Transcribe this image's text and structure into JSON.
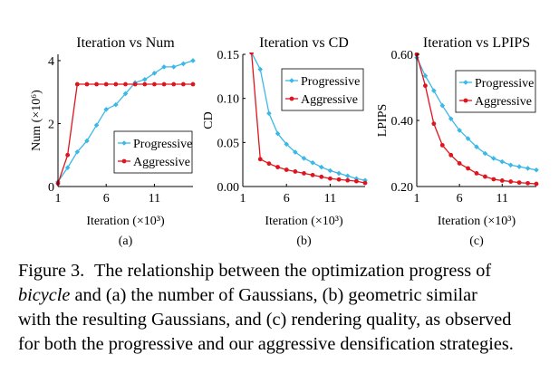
{
  "colors": {
    "progressive": "#3ab8e8",
    "aggressive": "#e0141c",
    "axis": "#000000",
    "legend_border": "#000000"
  },
  "chart_data": [
    {
      "type": "line",
      "panel_label": "(a)",
      "title": "Iteration vs Num",
      "xlabel": "Iteration (×10³)",
      "ylabel": "Num (×10⁶)",
      "xlim": [
        1,
        15
      ],
      "ylim": [
        0,
        4.2
      ],
      "xticks": [
        1,
        6,
        11
      ],
      "yticks": [
        0,
        2,
        4
      ],
      "ytick_labels": [
        "0",
        "2",
        "4"
      ],
      "grid": false,
      "legend_position": "center-right",
      "x": [
        1,
        2,
        3,
        4,
        5,
        6,
        7,
        8,
        9,
        10,
        11,
        12,
        13,
        14,
        15
      ],
      "series": [
        {
          "name": "Progressive",
          "color": "#3ab8e8",
          "marker": "diamond",
          "values": [
            0.15,
            0.6,
            1.1,
            1.45,
            1.95,
            2.45,
            2.6,
            2.95,
            3.3,
            3.4,
            3.6,
            3.8,
            3.8,
            3.9,
            4.0
          ]
        },
        {
          "name": "Aggressive",
          "color": "#e0141c",
          "marker": "circle",
          "values": [
            0.1,
            1.0,
            3.25,
            3.25,
            3.25,
            3.25,
            3.25,
            3.25,
            3.25,
            3.25,
            3.25,
            3.25,
            3.25,
            3.25,
            3.25
          ]
        }
      ]
    },
    {
      "type": "line",
      "panel_label": "(b)",
      "title": "Iteration vs CD",
      "xlabel": "Iteration (×10³)",
      "ylabel": "CD",
      "xlim": [
        1,
        15
      ],
      "ylim": [
        0,
        0.15
      ],
      "xticks": [
        1,
        6,
        11
      ],
      "yticks": [
        0,
        0.05,
        0.1,
        0.15
      ],
      "ytick_labels": [
        "0.00",
        "0.05",
        "0.10",
        "0.15"
      ],
      "grid": false,
      "legend_position": "top-right",
      "x": [
        1,
        2,
        3,
        4,
        5,
        6,
        7,
        8,
        9,
        10,
        11,
        12,
        13,
        14,
        15
      ],
      "series": [
        {
          "name": "Progressive",
          "color": "#3ab8e8",
          "marker": "diamond",
          "values": [
            null,
            0.152,
            0.133,
            0.083,
            0.06,
            0.048,
            0.039,
            0.032,
            0.027,
            0.022,
            0.018,
            0.015,
            0.012,
            0.009,
            0.007
          ]
        },
        {
          "name": "Aggressive",
          "color": "#e0141c",
          "marker": "circle",
          "values": [
            null,
            0.152,
            0.031,
            0.026,
            0.022,
            0.019,
            0.017,
            0.015,
            0.013,
            0.011,
            0.009,
            0.008,
            0.007,
            0.006,
            0.004
          ]
        }
      ]
    },
    {
      "type": "line",
      "panel_label": "(c)",
      "title": "Iteration vs LPIPS",
      "xlabel": "Iteration (×10³)",
      "ylabel": "LPIPS",
      "xlim": [
        1,
        15
      ],
      "ylim": [
        0.2,
        0.6
      ],
      "xticks": [
        1,
        6,
        11
      ],
      "yticks": [
        0.2,
        0.4,
        0.6
      ],
      "ytick_labels": [
        "0.20",
        "0.40",
        "0.60"
      ],
      "grid": false,
      "legend_position": "top-right",
      "x": [
        1,
        2,
        3,
        4,
        5,
        6,
        7,
        8,
        9,
        10,
        11,
        12,
        13,
        14,
        15
      ],
      "series": [
        {
          "name": "Progressive",
          "color": "#3ab8e8",
          "marker": "diamond",
          "values": [
            0.59,
            0.535,
            0.49,
            0.445,
            0.405,
            0.37,
            0.345,
            0.32,
            0.3,
            0.285,
            0.275,
            0.265,
            0.26,
            0.255,
            0.25
          ]
        },
        {
          "name": "Aggressive",
          "color": "#e0141c",
          "marker": "circle",
          "values": [
            0.6,
            0.505,
            0.39,
            0.325,
            0.295,
            0.27,
            0.255,
            0.24,
            0.23,
            0.222,
            0.218,
            0.215,
            0.212,
            0.21,
            0.208
          ]
        }
      ]
    }
  ],
  "caption": {
    "label": "Figure 3.",
    "line1": "The relationship between the optimization progress of",
    "line2_italic": "bicycle",
    "line2": "and (a) the number of Gaussians, (b) geometric similar",
    "line3": "with the resulting Gaussians, and (c) rendering quality, as observed",
    "line4": "for both the progressive and our aggressive densification strategies."
  }
}
